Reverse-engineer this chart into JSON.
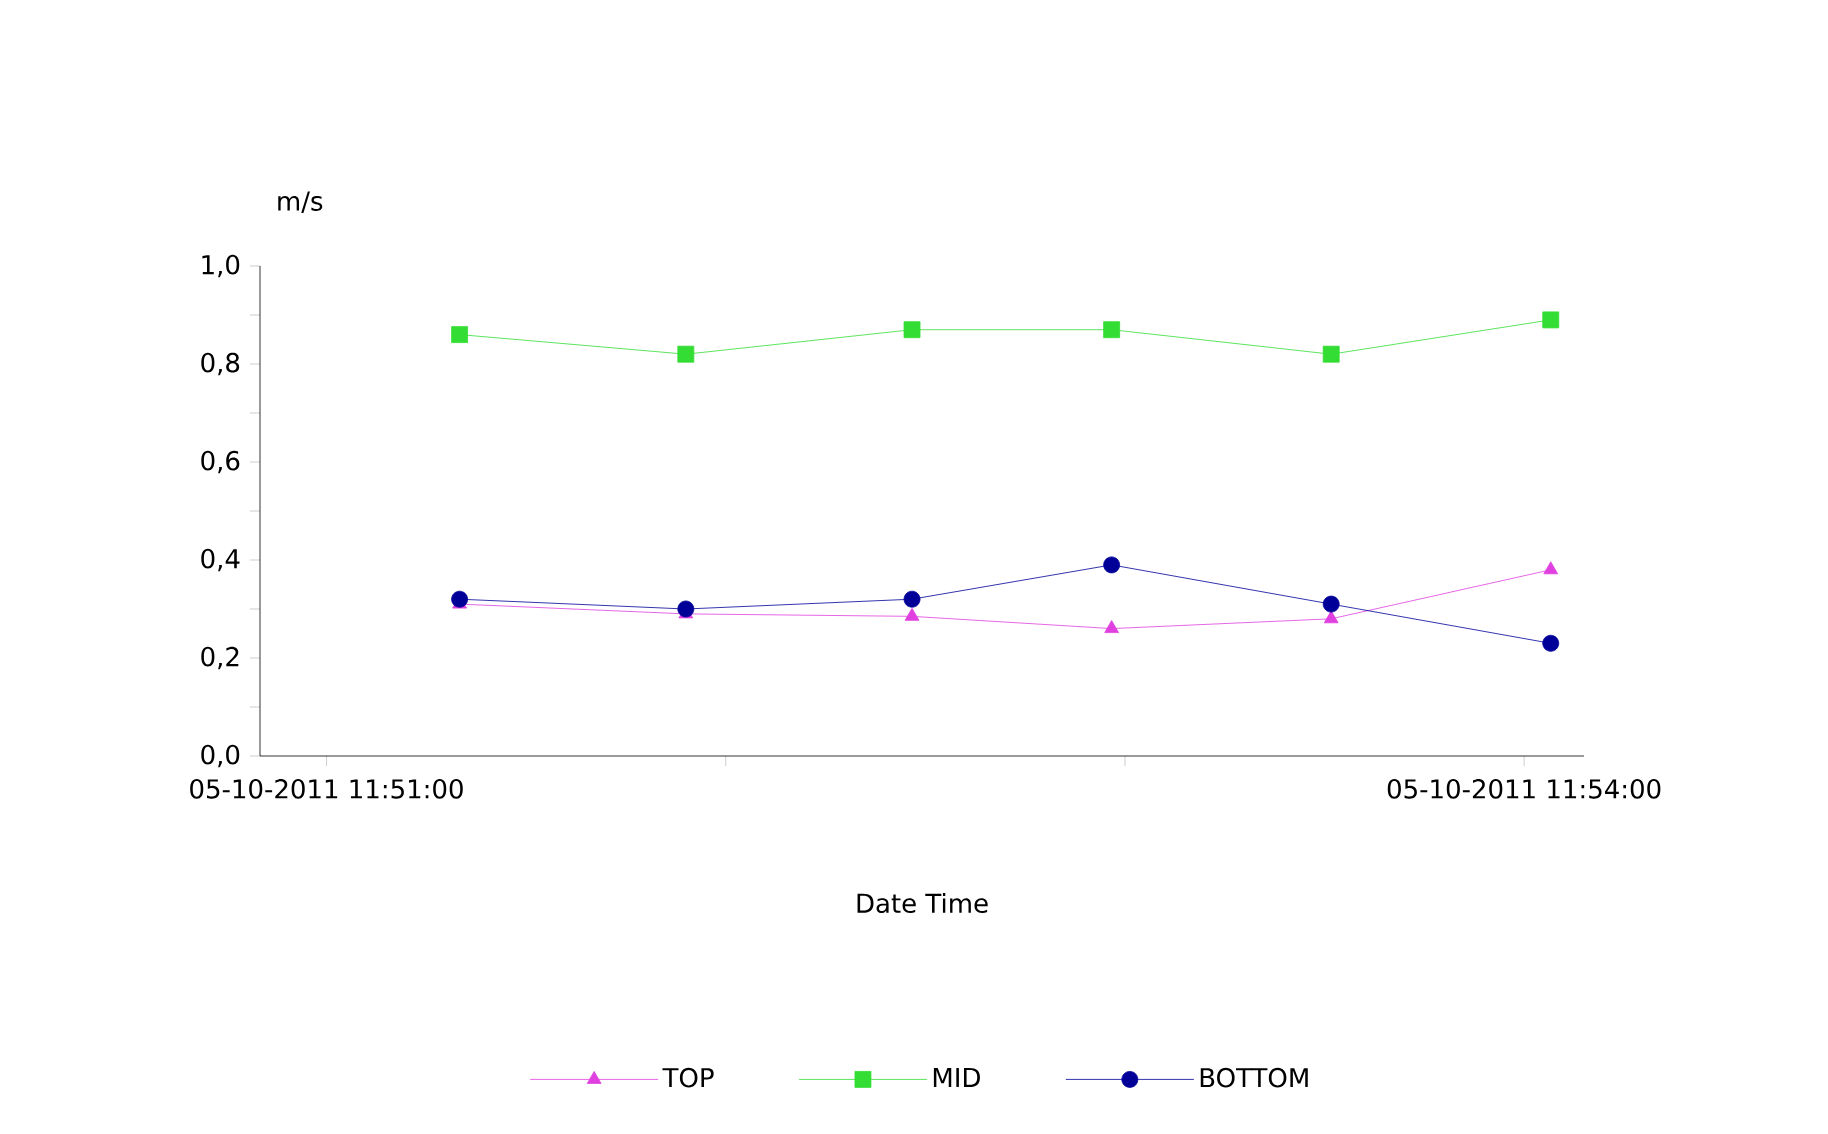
{
  "chart_data": {
    "type": "line",
    "xlabel": "Date Time",
    "ylabel": "m/s",
    "x": [
      "2011-10-05T11:51:20",
      "2011-10-05T11:51:54",
      "2011-10-05T11:52:28",
      "2011-10-05T11:52:58",
      "2011-10-05T11:53:31",
      "2011-10-05T11:54:04"
    ],
    "series": [
      {
        "name": "TOP",
        "color": "#e040e0",
        "marker": "triangle",
        "values": [
          0.31,
          0.29,
          0.285,
          0.26,
          0.28,
          0.38
        ]
      },
      {
        "name": "MID",
        "color": "#33dd33",
        "marker": "square",
        "values": [
          0.86,
          0.82,
          0.87,
          0.87,
          0.82,
          0.89
        ]
      },
      {
        "name": "BOTTOM",
        "color": "#000099",
        "marker": "circle",
        "values": [
          0.32,
          0.3,
          0.32,
          0.39,
          0.31,
          0.23
        ]
      }
    ],
    "xlim": [
      "2011-10-05T11:50:50",
      "2011-10-05T11:54:09"
    ],
    "xticks": [
      {
        "value": "2011-10-05T11:51",
        "label": "05-10-2011 11:51:00"
      },
      {
        "value": "2011-10-05T11:52",
        "label": null
      },
      {
        "value": "2011-10-05T11:53",
        "label": null
      },
      {
        "value": "2011-10-05T11:54",
        "label": "05-10-2011 11:54:00"
      }
    ],
    "ylim": [
      0,
      1
    ],
    "yticks": [
      {
        "value": 0,
        "label": "0,0"
      },
      {
        "value": 0.1,
        "label": null
      },
      {
        "value": 0.2,
        "label": "0,2"
      },
      {
        "value": 0.3,
        "label": null
      },
      {
        "value": 0.4,
        "label": "0,4"
      },
      {
        "value": 0.5,
        "label": null
      },
      {
        "value": 0.6,
        "label": "0,6"
      },
      {
        "value": 0.7,
        "label": null
      },
      {
        "value": 0.8,
        "label": "0,8"
      },
      {
        "value": 0.9,
        "label": null
      },
      {
        "value": 1.0,
        "label": "1,0"
      }
    ],
    "grid": false,
    "legend": "bottom"
  }
}
